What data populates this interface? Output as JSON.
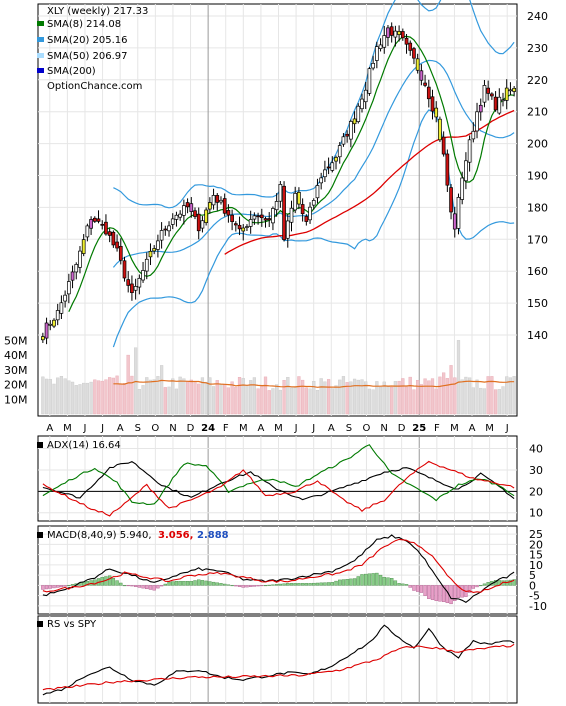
{
  "chart_data": [
    {
      "panel": "price",
      "type": "candlestick",
      "legend": {
        "title": "XLY (weekly) 217.33",
        "items": [
          {
            "label": "SMA(8) 214.08",
            "color": "#007a00"
          },
          {
            "label": "SMA(20) 205.16",
            "color": "#3399dd"
          },
          {
            "label": "SMA(50) 206.97",
            "color": "#e0e000"
          },
          {
            "label": "SMA(200)",
            "color": "#0000cc"
          }
        ],
        "source": "OptionChance.com"
      },
      "y_ticks": [
        "240",
        "230",
        "220",
        "210",
        "200",
        "190",
        "180",
        "170",
        "160",
        "150",
        "140"
      ],
      "y_range": [
        130,
        243
      ],
      "x_labels": [
        "A",
        "M",
        "J",
        "J",
        "A",
        "S",
        "O",
        "N",
        "D",
        "24",
        "F",
        "M",
        "A",
        "M",
        "J",
        "J",
        "A",
        "S",
        "O",
        "N",
        "D",
        "25",
        "F",
        "M",
        "A",
        "M",
        "J"
      ],
      "close_anchors": [
        [
          0,
          141
        ],
        [
          4,
          147
        ],
        [
          9,
          162
        ],
        [
          13,
          177
        ],
        [
          17,
          173
        ],
        [
          20,
          166
        ],
        [
          24,
          152
        ],
        [
          27,
          160
        ],
        [
          31,
          170
        ],
        [
          35,
          177
        ],
        [
          39,
          180
        ],
        [
          42,
          174
        ],
        [
          46,
          184
        ],
        [
          50,
          178
        ],
        [
          53,
          172
        ],
        [
          57,
          178
        ],
        [
          61,
          176
        ],
        [
          64,
          186
        ],
        [
          65,
          170
        ],
        [
          68,
          184
        ],
        [
          71,
          175
        ],
        [
          75,
          190
        ],
        [
          79,
          196
        ],
        [
          83,
          206
        ],
        [
          87,
          218
        ],
        [
          90,
          230
        ],
        [
          93,
          236
        ],
        [
          97,
          232
        ],
        [
          100,
          226
        ],
        [
          103,
          219
        ],
        [
          106,
          208
        ],
        [
          108,
          196
        ],
        [
          110,
          178
        ],
        [
          111,
          174
        ],
        [
          113,
          190
        ],
        [
          115,
          200
        ],
        [
          117,
          210
        ],
        [
          119,
          217
        ],
        [
          122,
          212
        ],
        [
          125,
          216
        ],
        [
          127,
          217.33
        ]
      ],
      "weeks": 128,
      "sma8_last": 214.08,
      "sma20_last": 205.16,
      "sma50_last": 206.97,
      "bb_range": [
        172,
        242
      ],
      "volume_ticks": [
        "50M",
        "40M",
        "30M",
        "20M",
        "10M"
      ],
      "volume_range": [
        0,
        55
      ]
    },
    {
      "panel": "adx",
      "type": "line",
      "label": "ADX(14) 16.64",
      "y_ticks": [
        "40",
        "30",
        "20",
        "10"
      ],
      "y_range": [
        8,
        44
      ],
      "series": [
        {
          "color": "#000000",
          "anchors": [
            [
              0,
              22
            ],
            [
              10,
              17
            ],
            [
              18,
              31
            ],
            [
              24,
              34
            ],
            [
              32,
              23
            ],
            [
              40,
              17
            ],
            [
              48,
              24
            ],
            [
              56,
              29
            ],
            [
              62,
              22
            ],
            [
              70,
              16
            ],
            [
              78,
              20
            ],
            [
              86,
              25
            ],
            [
              92,
              29
            ],
            [
              98,
              31
            ],
            [
              106,
              25
            ],
            [
              112,
              21
            ],
            [
              118,
              28
            ],
            [
              124,
              21
            ],
            [
              127,
              16.64
            ]
          ]
        },
        {
          "color": "#007a00",
          "anchors": [
            [
              0,
              18
            ],
            [
              8,
              26
            ],
            [
              14,
              31
            ],
            [
              20,
              24
            ],
            [
              24,
              15
            ],
            [
              30,
              14
            ],
            [
              38,
              33
            ],
            [
              44,
              32
            ],
            [
              50,
              20
            ],
            [
              56,
              24
            ],
            [
              62,
              26
            ],
            [
              68,
              22
            ],
            [
              74,
              28
            ],
            [
              82,
              35
            ],
            [
              88,
              42
            ],
            [
              94,
              28
            ],
            [
              100,
              22
            ],
            [
              106,
              16
            ],
            [
              112,
              23
            ],
            [
              118,
              26
            ],
            [
              124,
              22
            ],
            [
              127,
              18
            ]
          ]
        },
        {
          "color": "#dd0000",
          "anchors": [
            [
              0,
              23
            ],
            [
              6,
              18
            ],
            [
              14,
              11
            ],
            [
              18,
              9
            ],
            [
              22,
              14
            ],
            [
              28,
              23
            ],
            [
              34,
              12
            ],
            [
              40,
              16
            ],
            [
              48,
              22
            ],
            [
              54,
              30
            ],
            [
              60,
              18
            ],
            [
              68,
              20
            ],
            [
              74,
              25
            ],
            [
              80,
              17
            ],
            [
              86,
              11
            ],
            [
              92,
              16
            ],
            [
              98,
              26
            ],
            [
              104,
              34
            ],
            [
              110,
              30
            ],
            [
              116,
              26
            ],
            [
              122,
              24
            ],
            [
              127,
              22
            ]
          ]
        }
      ]
    },
    {
      "panel": "macd",
      "type": "line+bar",
      "label": "MACD(8,40,9) 5.940,",
      "signal_label": "3.056,",
      "hist_label": "2.888",
      "y_ticks": [
        "25",
        "20",
        "15",
        "10",
        "5",
        "0",
        "-5",
        "-10"
      ],
      "y_range": [
        -12,
        27
      ],
      "series": [
        {
          "name": "MACD",
          "color": "#000000",
          "anchors": [
            [
              0,
              -5
            ],
            [
              6,
              -2
            ],
            [
              14,
              4
            ],
            [
              18,
              8
            ],
            [
              24,
              5
            ],
            [
              30,
              1
            ],
            [
              36,
              5
            ],
            [
              42,
              8
            ],
            [
              48,
              7
            ],
            [
              54,
              3
            ],
            [
              60,
              2
            ],
            [
              66,
              3
            ],
            [
              72,
              5
            ],
            [
              78,
              7
            ],
            [
              84,
              12
            ],
            [
              90,
              22
            ],
            [
              94,
              24
            ],
            [
              98,
              22
            ],
            [
              102,
              15
            ],
            [
              106,
              4
            ],
            [
              110,
              -6
            ],
            [
              114,
              -8
            ],
            [
              118,
              -3
            ],
            [
              122,
              2
            ],
            [
              125,
              4
            ],
            [
              127,
              5.94
            ]
          ]
        },
        {
          "name": "Signal",
          "color": "#dd0000",
          "anchors": [
            [
              0,
              -3
            ],
            [
              8,
              -1
            ],
            [
              16,
              2
            ],
            [
              22,
              6
            ],
            [
              28,
              4
            ],
            [
              34,
              2
            ],
            [
              40,
              5
            ],
            [
              48,
              6
            ],
            [
              54,
              4
            ],
            [
              60,
              2
            ],
            [
              66,
              2
            ],
            [
              72,
              4
            ],
            [
              80,
              6
            ],
            [
              86,
              10
            ],
            [
              92,
              19
            ],
            [
              96,
              22
            ],
            [
              100,
              21
            ],
            [
              104,
              16
            ],
            [
              108,
              7
            ],
            [
              112,
              -1
            ],
            [
              116,
              -4
            ],
            [
              120,
              -2
            ],
            [
              124,
              1
            ],
            [
              127,
              3.056
            ]
          ]
        }
      ]
    },
    {
      "panel": "rs",
      "type": "line",
      "label": "RS vs SPY",
      "series": [
        {
          "color": "#000000",
          "anchors": [
            [
              0,
              5
            ],
            [
              6,
              12
            ],
            [
              12,
              28
            ],
            [
              18,
              36
            ],
            [
              24,
              22
            ],
            [
              30,
              16
            ],
            [
              36,
              31
            ],
            [
              42,
              33
            ],
            [
              48,
              25
            ],
            [
              54,
              22
            ],
            [
              60,
              26
            ],
            [
              66,
              30
            ],
            [
              72,
              28
            ],
            [
              78,
              38
            ],
            [
              84,
              54
            ],
            [
              88,
              64
            ],
            [
              92,
              83
            ],
            [
              96,
              70
            ],
            [
              100,
              58
            ],
            [
              104,
              80
            ],
            [
              108,
              58
            ],
            [
              112,
              48
            ],
            [
              116,
              66
            ],
            [
              120,
              62
            ],
            [
              124,
              66
            ],
            [
              127,
              65
            ]
          ]
        },
        {
          "color": "#dd0000",
          "anchors": [
            [
              0,
              10
            ],
            [
              10,
              15
            ],
            [
              20,
              20
            ],
            [
              30,
              22
            ],
            [
              40,
              25
            ],
            [
              50,
              25
            ],
            [
              60,
              26
            ],
            [
              70,
              27
            ],
            [
              80,
              33
            ],
            [
              90,
              45
            ],
            [
              96,
              57
            ],
            [
              100,
              60
            ],
            [
              106,
              58
            ],
            [
              112,
              54
            ],
            [
              118,
              57
            ],
            [
              124,
              60
            ],
            [
              127,
              61
            ]
          ]
        }
      ]
    }
  ]
}
